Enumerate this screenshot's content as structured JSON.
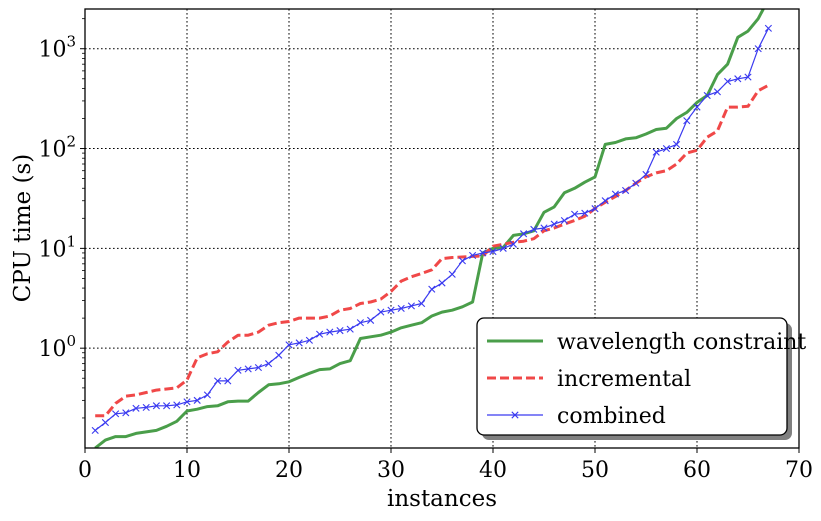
{
  "chart_data": {
    "type": "line",
    "xlabel": "instances",
    "ylabel": "CPU time (s)",
    "xlim": [
      0,
      70
    ],
    "ylim": [
      0.1,
      2500
    ],
    "yscale": "log",
    "grid": true,
    "legend_position": "lower-right",
    "x_ticks": [
      "0",
      "10",
      "20",
      "30",
      "40",
      "50",
      "60",
      "70"
    ],
    "y_ticks": [
      {
        "value": 1,
        "base": "10",
        "exp": "0"
      },
      {
        "value": 10,
        "base": "10",
        "exp": "1"
      },
      {
        "value": 100,
        "base": "10",
        "exp": "2"
      },
      {
        "value": 1000,
        "base": "10",
        "exp": "3"
      }
    ],
    "series": [
      {
        "name": "wavelength constraint",
        "color": "#4a9e4a",
        "style": "solid",
        "marker": "none",
        "x": [
          1,
          2,
          3,
          4,
          5,
          6,
          7,
          8,
          9,
          10,
          11,
          12,
          13,
          14,
          15,
          16,
          17,
          18,
          19,
          20,
          21,
          22,
          23,
          24,
          25,
          26,
          27,
          28,
          29,
          30,
          31,
          32,
          33,
          34,
          35,
          36,
          37,
          38,
          39,
          40,
          41,
          42,
          43,
          44,
          45,
          46,
          47,
          48,
          49,
          50,
          51,
          52,
          53,
          54,
          55,
          56,
          57,
          58,
          59,
          60,
          61,
          62,
          63,
          64,
          65,
          66
        ],
        "values": [
          0.1,
          0.12,
          0.13,
          0.13,
          0.14,
          0.145,
          0.15,
          0.165,
          0.185,
          0.235,
          0.245,
          0.26,
          0.265,
          0.29,
          0.295,
          0.295,
          0.36,
          0.43,
          0.44,
          0.46,
          0.51,
          0.56,
          0.61,
          0.62,
          0.7,
          0.75,
          1.25,
          1.3,
          1.35,
          1.45,
          1.6,
          1.7,
          1.8,
          2.1,
          2.3,
          2.4,
          2.6,
          2.9,
          9,
          10,
          10.2,
          13.5,
          14,
          15,
          23,
          26,
          36,
          40,
          46,
          52,
          110,
          115,
          125,
          128,
          140,
          155,
          160,
          200,
          230,
          290,
          340,
          550,
          700,
          1300,
          1500,
          2000
        ],
        "x_end": 66.5,
        "y_end": 2500
      },
      {
        "name": "incremental",
        "color": "#f04848",
        "style": "dashed",
        "marker": "none",
        "x": [
          1,
          2,
          3,
          4,
          5,
          6,
          7,
          8,
          9,
          10,
          11,
          12,
          13,
          14,
          15,
          16,
          17,
          18,
          19,
          20,
          21,
          22,
          23,
          24,
          25,
          26,
          27,
          28,
          29,
          30,
          31,
          32,
          33,
          34,
          35,
          36,
          37,
          38,
          39,
          40,
          41,
          42,
          43,
          44,
          45,
          46,
          47,
          48,
          49,
          50,
          51,
          52,
          53,
          54,
          55,
          56,
          57,
          58,
          59,
          60,
          61,
          62,
          63,
          64,
          65,
          66,
          67
        ],
        "values": [
          0.21,
          0.21,
          0.28,
          0.33,
          0.34,
          0.36,
          0.38,
          0.39,
          0.4,
          0.48,
          0.8,
          0.88,
          0.92,
          1.15,
          1.35,
          1.35,
          1.45,
          1.7,
          1.8,
          1.85,
          2,
          2,
          2,
          2.1,
          2.4,
          2.5,
          2.8,
          2.9,
          3.1,
          3.7,
          4.7,
          5.2,
          5.6,
          6.1,
          7.9,
          8.1,
          8.2,
          8.3,
          8.4,
          10.5,
          11,
          11.5,
          11.8,
          12.5,
          15,
          16,
          17.5,
          19,
          21,
          25,
          29,
          33,
          38,
          45,
          52,
          57,
          60,
          70,
          90,
          96,
          130,
          150,
          260,
          260,
          265,
          380,
          430
        ]
      },
      {
        "name": "combined",
        "color": "#3a3af0",
        "style": "solid",
        "marker": "x",
        "x": [
          1,
          2,
          3,
          4,
          5,
          6,
          7,
          8,
          9,
          10,
          11,
          12,
          13,
          14,
          15,
          16,
          17,
          18,
          19,
          20,
          21,
          22,
          23,
          24,
          25,
          26,
          27,
          28,
          29,
          30,
          31,
          32,
          33,
          34,
          35,
          36,
          37,
          38,
          39,
          40,
          41,
          42,
          43,
          44,
          45,
          46,
          47,
          48,
          49,
          50,
          51,
          52,
          53,
          54,
          55,
          56,
          57,
          58,
          59,
          60,
          61,
          62,
          63,
          64,
          65,
          66,
          67
        ],
        "values": [
          0.15,
          0.18,
          0.22,
          0.225,
          0.25,
          0.255,
          0.265,
          0.265,
          0.27,
          0.29,
          0.3,
          0.34,
          0.47,
          0.47,
          0.6,
          0.62,
          0.64,
          0.7,
          0.85,
          1.08,
          1.13,
          1.2,
          1.38,
          1.45,
          1.5,
          1.55,
          1.8,
          1.9,
          2.3,
          2.4,
          2.5,
          2.65,
          2.8,
          3.9,
          4.5,
          5.5,
          7.5,
          8.5,
          9,
          9.3,
          10,
          11,
          14,
          15.5,
          16,
          17.5,
          19,
          22,
          22.5,
          25,
          30,
          35,
          38,
          45,
          55,
          92,
          100,
          110,
          190,
          260,
          340,
          370,
          470,
          500,
          520,
          1000,
          1600
        ]
      }
    ]
  }
}
